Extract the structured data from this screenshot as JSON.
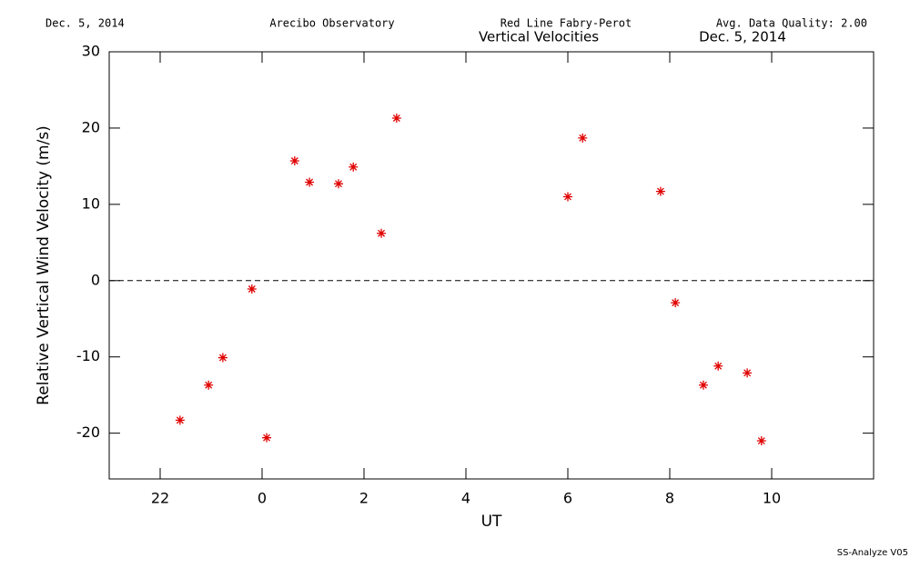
{
  "chart_data": {
    "type": "scatter",
    "header": {
      "date": "Dec. 5, 2014",
      "site": "Arecibo Observatory",
      "instrument": "Red Line Fabry-Perot",
      "quality": "Avg. Data Quality: 2.00"
    },
    "title": "Vertical Velocities",
    "title_date": "Dec. 5, 2014",
    "footer": "SS-Analyze V05",
    "xlabel": "UT",
    "ylabel": "Relative Vertical Wind Velocity (m/s)",
    "x": [
      -1.61,
      -1.05,
      -0.77,
      -0.2,
      0.09,
      0.64,
      0.93,
      1.5,
      1.79,
      2.34,
      2.64,
      6.0,
      6.29,
      7.82,
      8.11,
      8.66,
      8.95,
      9.52,
      9.8
    ],
    "values": [
      -18.3,
      -13.7,
      -10.1,
      -1.1,
      -20.6,
      15.7,
      12.9,
      12.7,
      14.9,
      6.2,
      21.3,
      11.0,
      18.7,
      11.7,
      -2.9,
      -13.7,
      -11.2,
      -12.1,
      -21.0
    ],
    "color": "#e00000",
    "xlim": [
      -3,
      12
    ],
    "xticks": [
      {
        "value": -2,
        "label": "22"
      },
      0,
      2,
      4,
      6,
      8,
      10
    ],
    "ylim": [
      -26,
      30
    ],
    "yticks": [
      -20,
      -10,
      0,
      10,
      20,
      30
    ],
    "reference_line": 0,
    "grid": false
  }
}
